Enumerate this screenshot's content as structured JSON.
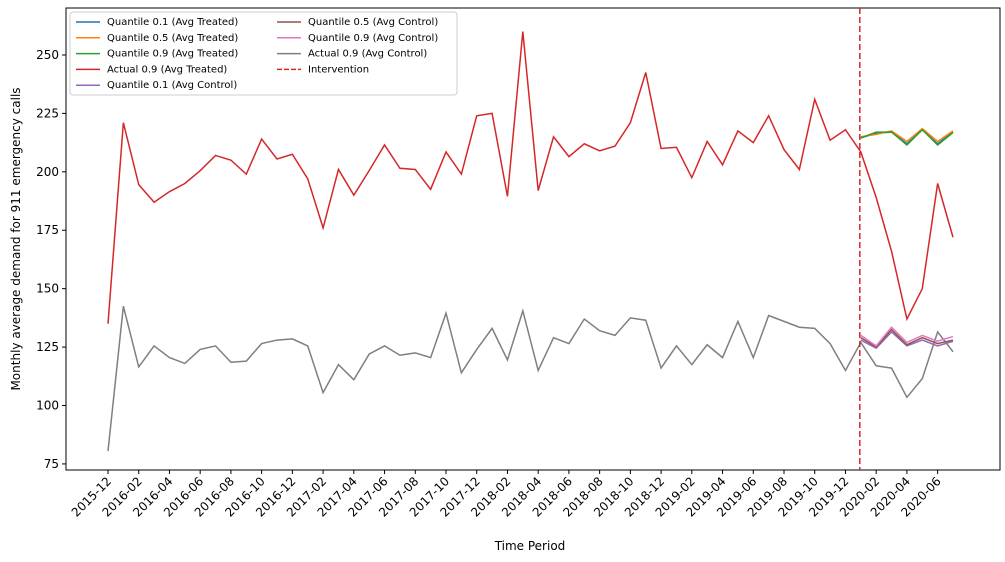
{
  "chart_data": {
    "type": "line",
    "ylabel": "Monthly average demand for 911 emergency calls",
    "xlabel": "Time Period",
    "x": [
      "2015-12",
      "2016-01",
      "2016-02",
      "2016-03",
      "2016-04",
      "2016-05",
      "2016-06",
      "2016-07",
      "2016-08",
      "2016-09",
      "2016-10",
      "2016-11",
      "2016-12",
      "2017-01",
      "2017-02",
      "2017-03",
      "2017-04",
      "2017-05",
      "2017-06",
      "2017-07",
      "2017-08",
      "2017-09",
      "2017-10",
      "2017-11",
      "2017-12",
      "2018-01",
      "2018-02",
      "2018-03",
      "2018-04",
      "2018-05",
      "2018-06",
      "2018-07",
      "2018-08",
      "2018-09",
      "2018-10",
      "2018-11",
      "2018-12",
      "2019-01",
      "2019-02",
      "2019-03",
      "2019-04",
      "2019-05",
      "2019-06",
      "2019-07",
      "2019-08",
      "2019-09",
      "2019-10",
      "2019-11",
      "2019-12",
      "2020-01",
      "2020-02",
      "2020-03",
      "2020-04",
      "2020-05",
      "2020-06",
      "2020-07"
    ],
    "xticks": [
      "2015-12",
      "2016-02",
      "2016-04",
      "2016-06",
      "2016-08",
      "2016-10",
      "2016-12",
      "2017-02",
      "2017-04",
      "2017-06",
      "2017-08",
      "2017-10",
      "2017-12",
      "2018-02",
      "2018-04",
      "2018-06",
      "2018-08",
      "2018-10",
      "2018-12",
      "2019-02",
      "2019-04",
      "2019-06",
      "2019-08",
      "2019-10",
      "2019-12",
      "2020-02",
      "2020-04",
      "2020-06"
    ],
    "ylim": [
      72.4,
      270.1
    ],
    "yticks": [
      75,
      100,
      125,
      150,
      175,
      200,
      225,
      250
    ],
    "legend": "upper left",
    "series": [
      {
        "name": "Quantile 0.1 (Avg Treated)",
        "color": "#1f77b4",
        "values": [
          null,
          null,
          null,
          null,
          null,
          null,
          null,
          null,
          null,
          null,
          null,
          null,
          null,
          null,
          null,
          null,
          null,
          null,
          null,
          null,
          null,
          null,
          null,
          null,
          null,
          null,
          null,
          null,
          null,
          null,
          null,
          null,
          null,
          null,
          null,
          null,
          null,
          null,
          null,
          null,
          null,
          null,
          null,
          null,
          null,
          null,
          null,
          null,
          null,
          214.5,
          216.5,
          217,
          212,
          218,
          212,
          217
        ]
      },
      {
        "name": "Quantile 0.5 (Avg Treated)",
        "color": "#ff7f0e",
        "values": [
          null,
          null,
          null,
          null,
          null,
          null,
          null,
          null,
          null,
          null,
          null,
          null,
          null,
          null,
          null,
          null,
          null,
          null,
          null,
          null,
          null,
          null,
          null,
          null,
          null,
          null,
          null,
          null,
          null,
          null,
          null,
          null,
          null,
          null,
          null,
          null,
          null,
          null,
          null,
          null,
          null,
          null,
          null,
          null,
          null,
          null,
          null,
          null,
          null,
          215,
          216,
          217.5,
          213,
          218.5,
          213,
          217.5
        ]
      },
      {
        "name": "Quantile 0.9 (Avg Treated)",
        "color": "#2ca02c",
        "values": [
          null,
          null,
          null,
          null,
          null,
          null,
          null,
          null,
          null,
          null,
          null,
          null,
          null,
          null,
          null,
          null,
          null,
          null,
          null,
          null,
          null,
          null,
          null,
          null,
          null,
          null,
          null,
          null,
          null,
          null,
          null,
          null,
          null,
          null,
          null,
          null,
          null,
          null,
          null,
          null,
          null,
          null,
          null,
          null,
          null,
          null,
          null,
          null,
          null,
          214.5,
          217,
          217,
          211.5,
          218,
          211.5,
          216.8
        ]
      },
      {
        "name": "Actual 0.9 (Avg Treated)",
        "color": "#d62728",
        "values": [
          135,
          221,
          194.5,
          187,
          191.5,
          195,
          200.5,
          207,
          205,
          199,
          214,
          205.5,
          207.5,
          197,
          176,
          201,
          190,
          200.5,
          211.5,
          201.5,
          201,
          192.5,
          208.5,
          199,
          224,
          225,
          189.5,
          260,
          192,
          215,
          206.5,
          212,
          209,
          211,
          221,
          242.5,
          210,
          210.5,
          197.5,
          213,
          203,
          217.5,
          212.5,
          224,
          209.5,
          201,
          231,
          213.5,
          218,
          208.5,
          189,
          166,
          137,
          150,
          195,
          172
        ]
      },
      {
        "name": "Quantile 0.1 (Avg Control)",
        "color": "#9467bd",
        "values": [
          null,
          null,
          null,
          null,
          null,
          null,
          null,
          null,
          null,
          null,
          null,
          null,
          null,
          null,
          null,
          null,
          null,
          null,
          null,
          null,
          null,
          null,
          null,
          null,
          null,
          null,
          null,
          null,
          null,
          null,
          null,
          null,
          null,
          null,
          null,
          null,
          null,
          null,
          null,
          null,
          null,
          null,
          null,
          null,
          null,
          null,
          null,
          null,
          null,
          128,
          124.5,
          131.5,
          125.5,
          128,
          125.5,
          127.5
        ]
      },
      {
        "name": "Quantile 0.5 (Avg Control)",
        "color": "#8c564b",
        "values": [
          null,
          null,
          null,
          null,
          null,
          null,
          null,
          null,
          null,
          null,
          null,
          null,
          null,
          null,
          null,
          null,
          null,
          null,
          null,
          null,
          null,
          null,
          null,
          null,
          null,
          null,
          null,
          null,
          null,
          null,
          null,
          null,
          null,
          null,
          null,
          null,
          null,
          null,
          null,
          null,
          null,
          null,
          null,
          null,
          null,
          null,
          null,
          null,
          null,
          129,
          125,
          132.5,
          126,
          129,
          126.5,
          128
        ]
      },
      {
        "name": "Quantile 0.9 (Avg Control)",
        "color": "#e377c2",
        "values": [
          null,
          null,
          null,
          null,
          null,
          null,
          null,
          null,
          null,
          null,
          null,
          null,
          null,
          null,
          null,
          null,
          null,
          null,
          null,
          null,
          null,
          null,
          null,
          null,
          null,
          null,
          null,
          null,
          null,
          null,
          null,
          null,
          null,
          null,
          null,
          null,
          null,
          null,
          null,
          null,
          null,
          null,
          null,
          null,
          null,
          null,
          null,
          null,
          null,
          130,
          125.5,
          133.5,
          127,
          130,
          127.5,
          129.5
        ]
      },
      {
        "name": "Actual 0.9 (Avg Control)",
        "color": "#7f7f7f",
        "values": [
          80.5,
          142.5,
          116.5,
          125.5,
          120.5,
          118,
          124,
          125.5,
          118.5,
          119,
          126.5,
          128,
          128.5,
          125.5,
          105.5,
          117.5,
          111,
          122,
          125.5,
          121.5,
          122.5,
          120.5,
          139.5,
          114,
          124,
          133,
          119.5,
          140.5,
          115,
          129,
          126.5,
          137,
          132,
          130,
          137.5,
          136.5,
          116,
          125.5,
          117.5,
          126,
          120.5,
          136,
          120.5,
          138.5,
          136,
          133.5,
          133,
          126.5,
          115,
          127,
          117,
          116,
          103.5,
          111.5,
          131.5,
          123
        ]
      }
    ],
    "intervention": {
      "name": "Intervention",
      "x": "2020-01",
      "color": "#d62728"
    }
  }
}
